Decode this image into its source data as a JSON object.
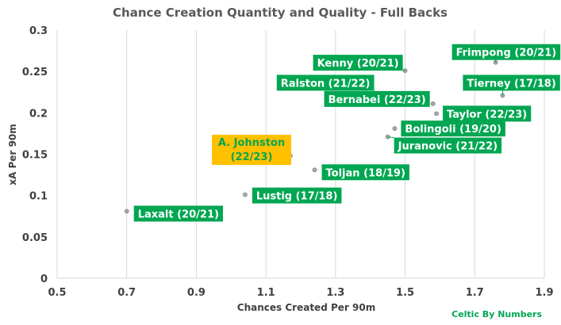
{
  "chart_data": {
    "type": "scatter",
    "title": "Chance Creation Quantity and Quality - Full Backs",
    "xlabel": "Chances Created Per 90m",
    "ylabel": "xA Per 90m",
    "xlim": [
      0.5,
      1.9
    ],
    "ylim": [
      0,
      0.3
    ],
    "x_ticks": [
      "0.5",
      "0.7",
      "0.9",
      "1.1",
      "1.3",
      "1.5",
      "1.7",
      "1.9"
    ],
    "y_ticks": [
      "0",
      "0.05",
      "0.1",
      "0.15",
      "0.2",
      "0.25",
      "0.3"
    ],
    "grid": "vertical",
    "points": [
      {
        "label": "Laxalt (20/21)",
        "x": 0.7,
        "y": 0.081,
        "highlight": false
      },
      {
        "label": "Lustig (17/18)",
        "x": 1.04,
        "y": 0.101,
        "highlight": false
      },
      {
        "label": "A. Johnston (22/23)",
        "x": 1.17,
        "y": 0.148,
        "highlight": true
      },
      {
        "label": "Toljan (18/19)",
        "x": 1.24,
        "y": 0.131,
        "highlight": false
      },
      {
        "label": "Ralston (21/22)",
        "x": 1.42,
        "y": 0.221,
        "highlight": false
      },
      {
        "label": "Juranovic (21/22)",
        "x": 1.45,
        "y": 0.171,
        "highlight": false
      },
      {
        "label": "Bolingoli (19/20)",
        "x": 1.47,
        "y": 0.181,
        "highlight": false
      },
      {
        "label": "Kenny (20/21)",
        "x": 1.5,
        "y": 0.251,
        "highlight": false
      },
      {
        "label": "Bernabei (22/23)",
        "x": 1.58,
        "y": 0.211,
        "highlight": false
      },
      {
        "label": "Taylor (22/23)",
        "x": 1.59,
        "y": 0.199,
        "highlight": false
      },
      {
        "label": "Frimpong (20/21)",
        "x": 1.76,
        "y": 0.261,
        "highlight": false
      },
      {
        "label": "Tierney (17/18)",
        "x": 1.78,
        "y": 0.221,
        "highlight": false
      }
    ],
    "credit": "Celtic By Numbers",
    "colors": {
      "label_bg": "#00a651",
      "label_text": "#ffffff",
      "highlight_bg": "#ffc000",
      "highlight_text": "#00a651",
      "point": "#a6a6a6",
      "grid": "#d9d9d9"
    }
  }
}
